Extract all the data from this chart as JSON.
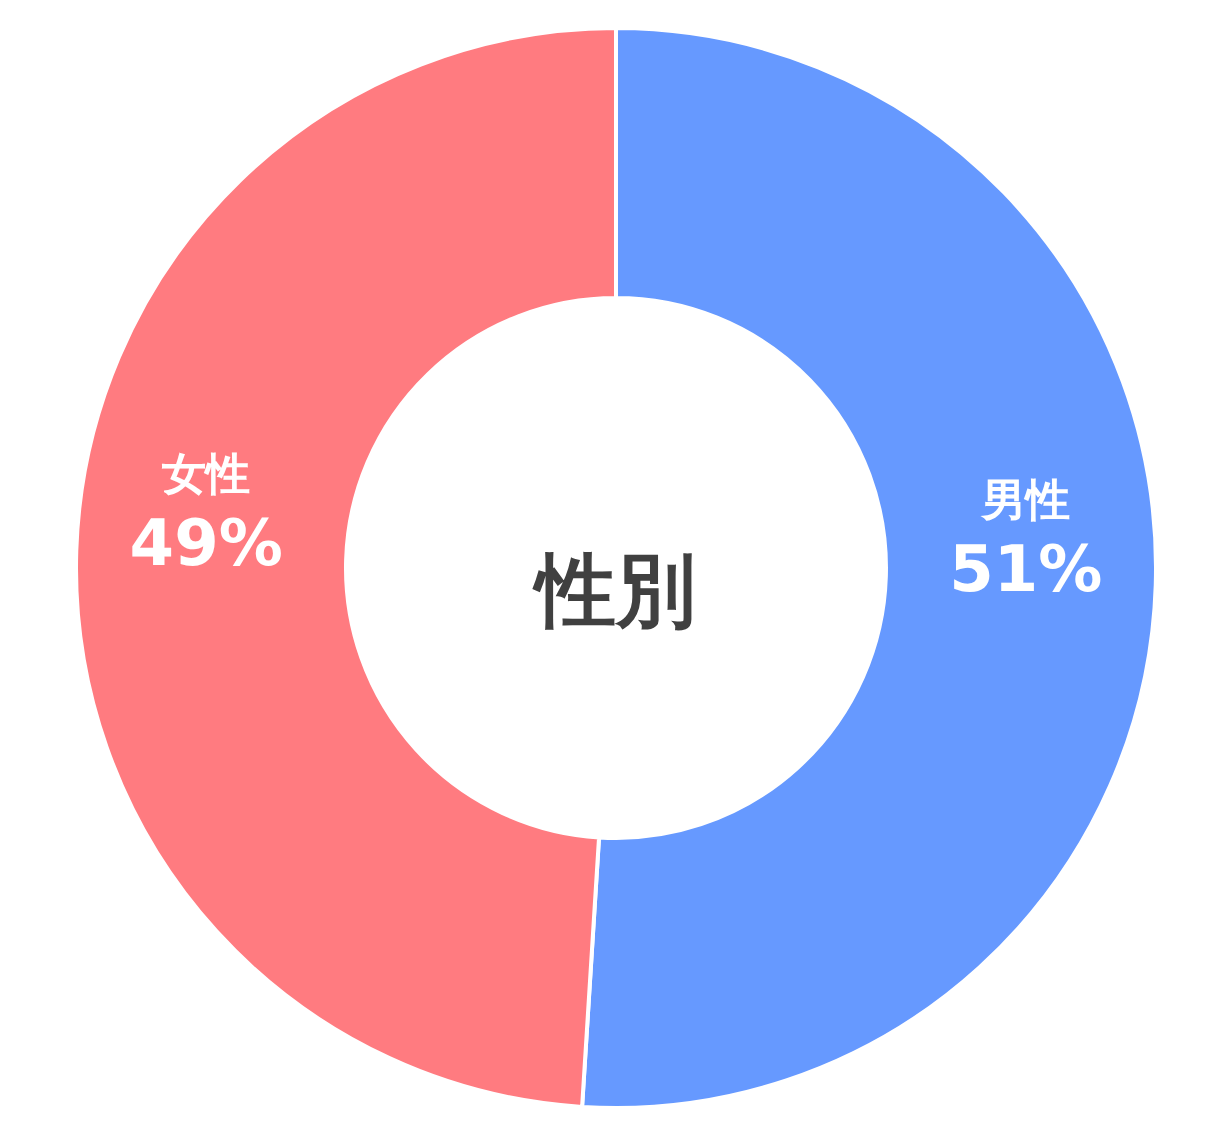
{
  "chart_data": {
    "type": "donut",
    "title": "性別",
    "categories": [
      "男性",
      "女性"
    ],
    "values": [
      51,
      49
    ],
    "colors": [
      "#6699ff",
      "#ff7b80"
    ],
    "value_labels": [
      "51%",
      "49%"
    ]
  }
}
